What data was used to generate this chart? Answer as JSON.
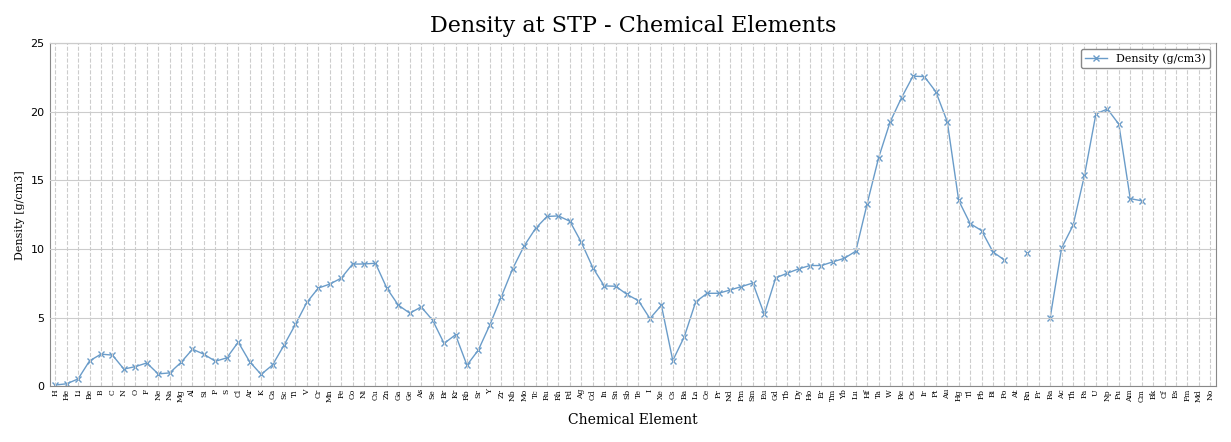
{
  "title": "Density at STP - Chemical Elements",
  "xlabel": "Chemical Element",
  "ylabel": "Density [g/cm3]",
  "legend_label": "Density (g/cm3)",
  "line_color": "#6a9cc9",
  "marker": "x",
  "background_color": "#ffffff",
  "grid_color": "#cccccc",
  "ylim": [
    0,
    25
  ],
  "yticks": [
    0,
    5,
    10,
    15,
    20,
    25
  ],
  "elements": [
    "H",
    "He",
    "Li",
    "Be",
    "B",
    "C",
    "N",
    "O",
    "F",
    "Ne",
    "Na",
    "Mg",
    "Al",
    "Si",
    "P",
    "S",
    "Cl",
    "Ar",
    "K",
    "Ca",
    "Sc",
    "Ti",
    "V",
    "Cr",
    "Mn",
    "Fe",
    "Co",
    "Ni",
    "Cu",
    "Zn",
    "Ga",
    "Ge",
    "As",
    "Se",
    "Br",
    "Kr",
    "Rb",
    "Sr",
    "Y",
    "Zr",
    "Nb",
    "Mo",
    "Tc",
    "Ru",
    "Rh",
    "Pd",
    "Ag",
    "Cd",
    "In",
    "Sn",
    "Sb",
    "Te",
    "I",
    "Xe",
    "Cs",
    "Ba",
    "La",
    "Ce",
    "Pr",
    "Nd",
    "Pm",
    "Sm",
    "Eu",
    "Gd",
    "Tb",
    "Dy",
    "Ho",
    "Er",
    "Tm",
    "Yb",
    "Lu",
    "Hf",
    "Ta",
    "W",
    "Re",
    "Os",
    "Ir",
    "Pt",
    "Au",
    "Hg",
    "Tl",
    "Pb",
    "Bi",
    "Po",
    "At",
    "Rn",
    "Fr",
    "Ra",
    "Ac",
    "Th",
    "Pa",
    "U",
    "Np",
    "Pu",
    "Am",
    "Cm",
    "Bk",
    "Cf",
    "Es",
    "Fm",
    "Md",
    "No"
  ],
  "densities": [
    0.0899,
    0.1786,
    0.535,
    1.848,
    2.34,
    2.267,
    1.251,
    1.429,
    1.696,
    0.9,
    0.971,
    1.738,
    2.698,
    2.329,
    1.82,
    2.067,
    3.214,
    1.784,
    0.862,
    1.55,
    2.985,
    4.507,
    6.11,
    7.15,
    7.44,
    7.874,
    8.9,
    8.908,
    8.96,
    7.133,
    5.907,
    5.323,
    5.776,
    4.809,
    3.122,
    3.749,
    1.532,
    2.64,
    4.469,
    6.506,
    8.57,
    10.22,
    11.5,
    12.37,
    12.41,
    12.02,
    10.49,
    8.65,
    7.31,
    7.287,
    6.685,
    6.232,
    4.93,
    5.9,
    1.873,
    3.594,
    6.145,
    6.77,
    6.773,
    7.007,
    7.26,
    7.52,
    5.243,
    7.9,
    8.23,
    8.55,
    8.795,
    8.795,
    9.066,
    9.321,
    9.84,
    13.31,
    16.654,
    19.25,
    21.02,
    22.59,
    22.56,
    21.46,
    19.28,
    13.534,
    11.85,
    11.34,
    9.78,
    9.196,
    null,
    9.73,
    null,
    5.0,
    10.07,
    11.72,
    15.37,
    19.84,
    20.2,
    19.1,
    13.67,
    13.51,
    null,
    null,
    null,
    null,
    null,
    null
  ]
}
